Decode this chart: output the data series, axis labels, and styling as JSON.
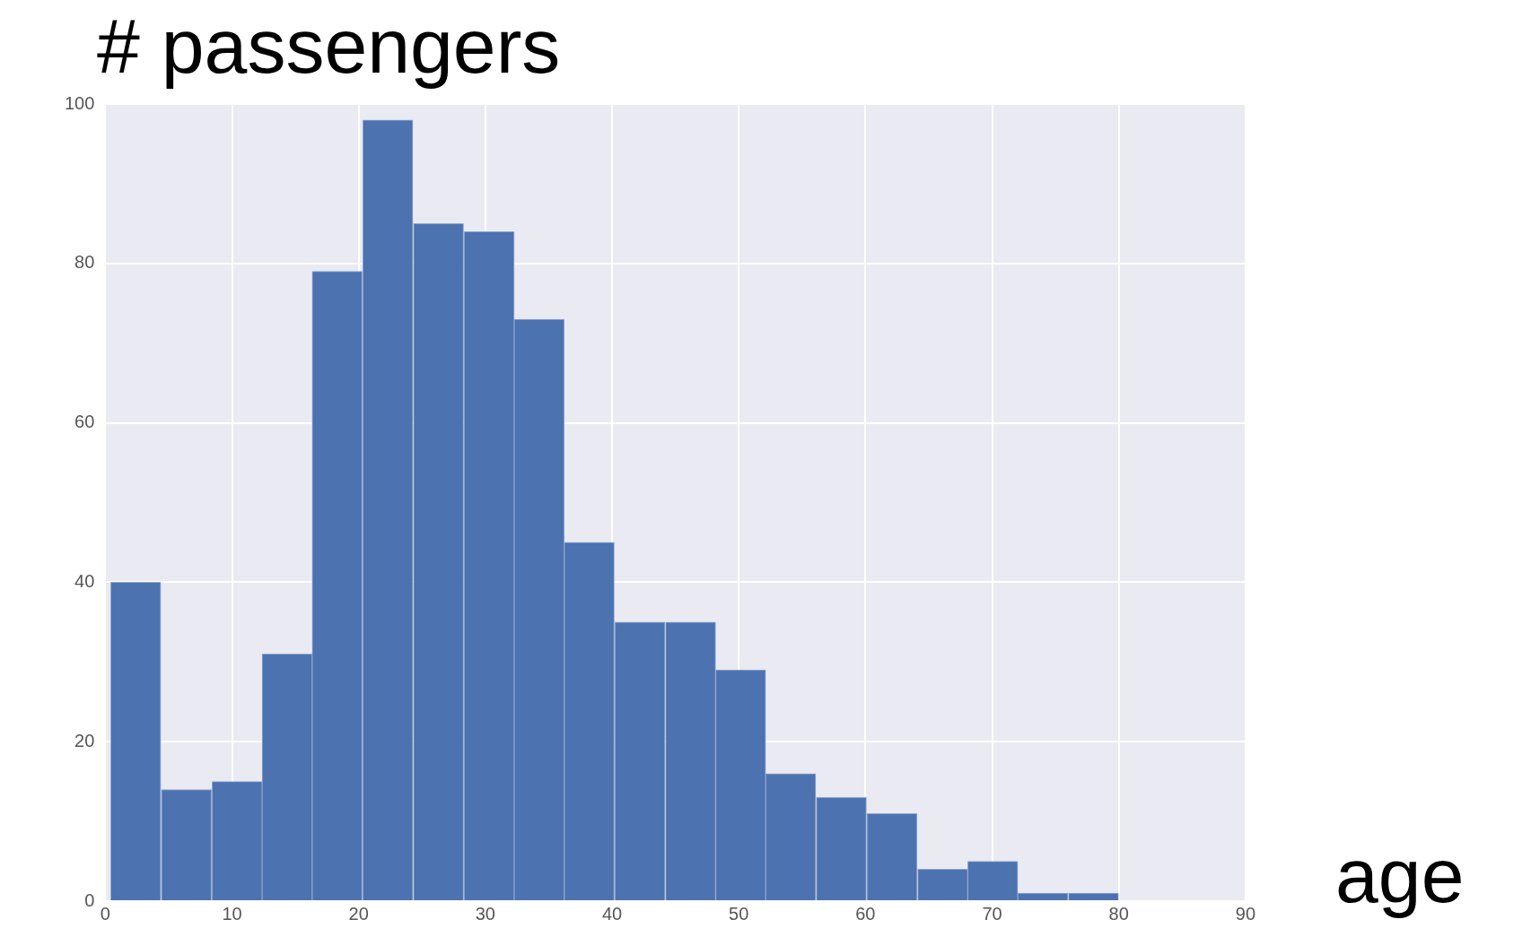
{
  "chart_data": {
    "type": "histogram",
    "title": "# passengers",
    "xlabel": "age",
    "bins": [
      0.4,
      4.4,
      8.4,
      12.4,
      16.3,
      20.3,
      24.3,
      28.3,
      32.3,
      36.2,
      40.2,
      44.2,
      48.2,
      52.1,
      56.1,
      60.1,
      64.1,
      68.1,
      72.0,
      76.0,
      80.0
    ],
    "values": [
      40,
      14,
      15,
      31,
      79,
      98,
      85,
      84,
      73,
      45,
      35,
      35,
      29,
      16,
      13,
      11,
      4,
      5,
      1,
      1
    ],
    "color": "#4c72b0",
    "xlim": [
      0,
      90
    ],
    "xticks": [
      0,
      10,
      20,
      30,
      40,
      50,
      60,
      70,
      80,
      90
    ],
    "ylim": [
      0,
      100
    ],
    "yticks": [
      0,
      20,
      40,
      60,
      80,
      100
    ],
    "grid": true
  }
}
